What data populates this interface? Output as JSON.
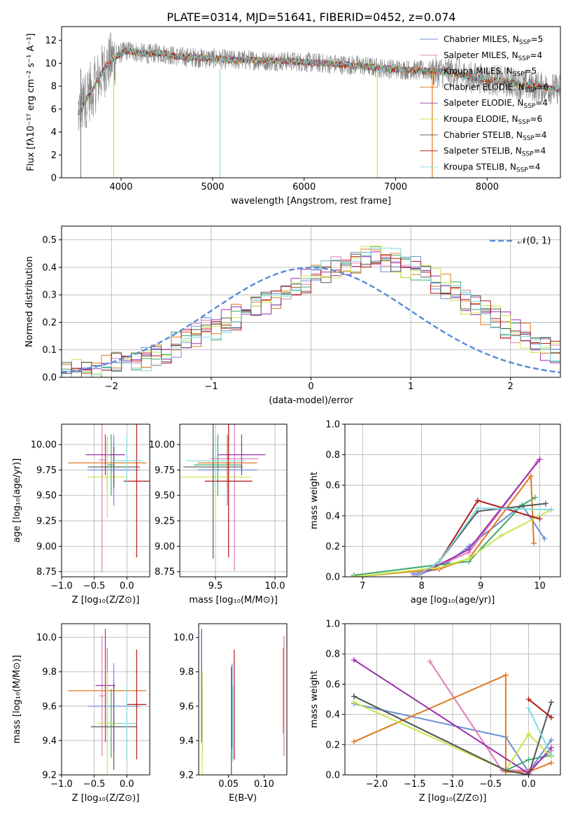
{
  "figure": {
    "title": "PLATE=0314, MJD=51641, FIBERID=0452, z=0.074"
  },
  "colors": {
    "Chabrier MILES": "#6b8fd6",
    "Salpeter MILES": "#e07cb4",
    "Kroupa MILES": "#3aa86b",
    "Chabrier ELODIE": "#e07a1f",
    "Salpeter ELODIE": "#9c2fae",
    "Kroupa ELODIE": "#c8e64a",
    "Chabrier STELIB": "#555555",
    "Salpeter STELIB": "#b01818",
    "Kroupa STELIB": "#7edce0"
  },
  "chart_data": [
    {
      "id": "spectrum",
      "type": "line",
      "xlabel": "wavelength [Angstrom, rest frame]",
      "ylabel": "Flux [fλ10⁻¹⁷ erg cm⁻² s⁻¹ A⁻¹]",
      "xlim": [
        3350,
        8800
      ],
      "ylim": [
        0,
        13.2
      ],
      "xticks": [
        4000,
        5000,
        6000,
        7000,
        8000
      ],
      "yticks": [
        0,
        2,
        4,
        6,
        8,
        10,
        12
      ],
      "grid": false,
      "legend": "top-right",
      "legend_entries": [
        {
          "model": "Chabrier MILES",
          "label": "Chabrier MILES, N",
          "sub": "SSP",
          "tail": "=5"
        },
        {
          "model": "Salpeter MILES",
          "label": "Salpeter MILES, N",
          "sub": "SSP",
          "tail": "=4"
        },
        {
          "model": "Kroupa MILES",
          "label": "Kroupa MILES, N",
          "sub": "SSP",
          "tail": "=5"
        },
        {
          "model": "Chabrier ELODIE",
          "label": "Chabrier ELODIE, N",
          "sub": "SSP",
          "tail": "=6"
        },
        {
          "model": "Salpeter ELODIE",
          "label": "Salpeter ELODIE, N",
          "sub": "SSP",
          "tail": "=4"
        },
        {
          "model": "Kroupa ELODIE",
          "label": "Kroupa ELODIE, N",
          "sub": "SSP",
          "tail": "=6"
        },
        {
          "model": "Chabrier STELIB",
          "label": "Chabrier STELIB, N",
          "sub": "SSP",
          "tail": "=4"
        },
        {
          "model": "Salpeter STELIB",
          "label": "Salpeter STELIB, N",
          "sub": "SSP",
          "tail": "=4"
        },
        {
          "model": "Kroupa STELIB",
          "label": "Kroupa STELIB, N",
          "sub": "SSP",
          "tail": "=4"
        }
      ],
      "observed_envelope": {
        "wavelength": [
          3550,
          3600,
          3650,
          3700,
          3750,
          3800,
          3850,
          3900,
          3950,
          4000,
          4050,
          4100,
          4200,
          4300,
          4400,
          4500,
          4600,
          4800,
          5000,
          5200,
          5400,
          5600,
          5800,
          6000,
          6200,
          6400,
          6600,
          6800,
          7000,
          7200,
          7400,
          7600,
          7800,
          8000,
          8200,
          8400,
          8600,
          8800
        ],
        "flux": [
          5.8,
          6.5,
          7.4,
          7.9,
          8.6,
          9.3,
          9.9,
          10.3,
          10.6,
          10.9,
          11.1,
          11.1,
          10.9,
          10.8,
          10.9,
          10.8,
          10.6,
          10.5,
          10.4,
          10.3,
          10.3,
          10.2,
          10.2,
          10.1,
          10.0,
          9.9,
          9.8,
          9.6,
          9.5,
          9.4,
          9.3,
          9.2,
          8.8,
          8.6,
          8.4,
          8.1,
          7.9,
          7.7
        ]
      }
    },
    {
      "id": "residuals",
      "type": "bar",
      "xlabel": "(data-model)/error",
      "ylabel": "Normed distribution",
      "xlim": [
        -2.5,
        2.5
      ],
      "ylim": [
        0,
        0.55
      ],
      "xticks": [
        -2,
        -1,
        0,
        1,
        2
      ],
      "yticks": [
        0.0,
        0.1,
        0.2,
        0.3,
        0.4,
        0.5
      ],
      "grid": true,
      "legend": "top-right",
      "legend_label": "𝒩(0, 1)",
      "bin_width": 0.1,
      "bin_start": -2.5,
      "histogram_values": [
        0.02,
        0.02,
        0.03,
        0.03,
        0.04,
        0.05,
        0.06,
        0.06,
        0.07,
        0.09,
        0.1,
        0.12,
        0.14,
        0.15,
        0.17,
        0.18,
        0.2,
        0.22,
        0.24,
        0.26,
        0.28,
        0.3,
        0.31,
        0.33,
        0.35,
        0.36,
        0.38,
        0.39,
        0.4,
        0.42,
        0.44,
        0.45,
        0.43,
        0.42,
        0.4,
        0.39,
        0.37,
        0.35,
        0.33,
        0.31,
        0.28,
        0.26,
        0.24,
        0.21,
        0.19,
        0.17,
        0.15,
        0.13,
        0.11,
        0.09,
        0.08,
        0.07,
        0.06,
        0.05,
        0.04,
        0.04,
        0.03,
        0.03,
        0.02,
        0.02
      ]
    },
    {
      "id": "age-vs-Z",
      "type": "scatter",
      "xlabel": "Z [log₁₀(Z/Z⊙)]",
      "ylabel": "age  [log₁₀(age/yr)]",
      "xlim": [
        -1.0,
        0.35
      ],
      "ylim": [
        8.7,
        10.2
      ],
      "xticks": [
        -1.0,
        -0.5,
        0.0
      ],
      "yticks": [
        8.75,
        9.0,
        9.25,
        9.5,
        9.75,
        10.0
      ],
      "grid": true,
      "points": [
        {
          "model": "Chabrier MILES",
          "x": -0.2,
          "y": 9.75,
          "xerr": 0.4,
          "yerr": 0.35
        },
        {
          "model": "Salpeter MILES",
          "x": -0.38,
          "y": 9.85,
          "xerr": 0.05,
          "yerr": 1.1
        },
        {
          "model": "Kroupa MILES",
          "x": -0.24,
          "y": 9.8,
          "xerr": 0.05,
          "yerr": 0.3
        },
        {
          "model": "Chabrier ELODIE",
          "x": -0.3,
          "y": 9.82,
          "xerr": 0.6,
          "yerr": 0.25
        },
        {
          "model": "Salpeter ELODIE",
          "x": -0.33,
          "y": 9.9,
          "xerr": 0.3,
          "yerr": 0.2
        },
        {
          "model": "Kroupa ELODIE",
          "x": -0.3,
          "y": 9.68,
          "xerr": 0.3,
          "yerr": 0.4
        },
        {
          "model": "Chabrier STELIB",
          "x": -0.2,
          "y": 9.78,
          "xerr": 0.4,
          "yerr": 0.2
        },
        {
          "model": "Salpeter STELIB",
          "x": 0.15,
          "y": 9.64,
          "xerr": 0.2,
          "yerr": 0.75
        },
        {
          "model": "Kroupa STELIB",
          "x": 0.0,
          "y": 9.84,
          "xerr": 0.25,
          "yerr": 0.25
        }
      ]
    },
    {
      "id": "age-vs-mass",
      "type": "scatter",
      "xlabel": "mass [log₁₀(M/M⊙)]",
      "ylabel": "",
      "xlim": [
        9.2,
        10.1
      ],
      "ylim": [
        8.7,
        10.2
      ],
      "xticks": [
        9.5,
        10.0
      ],
      "yticks": [
        8.75,
        9.0,
        9.25,
        9.5,
        9.75,
        10.0
      ],
      "grid": true,
      "points": [
        {
          "model": "Chabrier MILES",
          "x": 9.6,
          "y": 9.75,
          "xerr": 0.25,
          "yerr": 0.35
        },
        {
          "model": "Salpeter MILES",
          "x": 9.66,
          "y": 9.86,
          "xerr": 0.2,
          "yerr": 1.1
        },
        {
          "model": "Kroupa MILES",
          "x": 9.52,
          "y": 9.8,
          "xerr": 0.2,
          "yerr": 0.3
        },
        {
          "model": "Chabrier ELODIE",
          "x": 9.6,
          "y": 9.82,
          "xerr": 0.25,
          "yerr": 0.25
        },
        {
          "model": "Salpeter ELODIE",
          "x": 9.72,
          "y": 9.9,
          "xerr": 0.2,
          "yerr": 0.2
        },
        {
          "model": "Kroupa ELODIE",
          "x": 9.5,
          "y": 9.68,
          "xerr": 0.3,
          "yerr": 0.4
        },
        {
          "model": "Chabrier STELIB",
          "x": 9.48,
          "y": 9.78,
          "xerr": 0.25,
          "yerr": 0.9
        },
        {
          "model": "Salpeter STELIB",
          "x": 9.61,
          "y": 9.64,
          "xerr": 0.2,
          "yerr": 0.75
        },
        {
          "model": "Kroupa STELIB",
          "x": 9.5,
          "y": 9.84,
          "xerr": 0.25,
          "yerr": 0.25
        }
      ]
    },
    {
      "id": "weight-vs-age",
      "type": "line",
      "xlabel": "age  [log₁₀(age/yr)]",
      "ylabel": "mass weight",
      "xlim": [
        6.7,
        10.35
      ],
      "ylim": [
        0,
        1.0
      ],
      "xticks": [
        7,
        8,
        9,
        10
      ],
      "yticks": [
        0.0,
        0.2,
        0.4,
        0.6,
        0.8,
        1.0
      ],
      "grid": true,
      "series": [
        {
          "model": "Chabrier MILES",
          "x": [
            7.85,
            8.3,
            8.8,
            9.7,
            10.08
          ],
          "y": [
            0.02,
            0.05,
            0.2,
            0.47,
            0.25
          ]
        },
        {
          "model": "Salpeter MILES",
          "x": [
            7.9,
            8.8,
            9.95
          ],
          "y": [
            0.01,
            0.16,
            0.75
          ]
        },
        {
          "model": "Kroupa MILES",
          "x": [
            6.85,
            8.3,
            8.8,
            9.7,
            9.92
          ],
          "y": [
            0.01,
            0.08,
            0.1,
            0.47,
            0.52
          ]
        },
        {
          "model": "Chabrier ELODIE",
          "x": [
            6.85,
            8.3,
            8.8,
            9.85,
            9.9
          ],
          "y": [
            0.0,
            0.05,
            0.12,
            0.66,
            0.22
          ]
        },
        {
          "model": "Salpeter ELODIE",
          "x": [
            7.9,
            8.8,
            10.0
          ],
          "y": [
            0.0,
            0.18,
            0.77
          ]
        },
        {
          "model": "Kroupa ELODIE",
          "x": [
            6.85,
            8.3,
            8.8,
            9.35,
            10.2
          ],
          "y": [
            0.0,
            0.06,
            0.12,
            0.27,
            0.44
          ]
        },
        {
          "model": "Chabrier STELIB",
          "x": [
            7.9,
            8.3,
            8.95,
            10.1
          ],
          "y": [
            0.0,
            0.1,
            0.43,
            0.48
          ]
        },
        {
          "model": "Salpeter STELIB",
          "x": [
            7.9,
            8.3,
            8.95,
            10.0
          ],
          "y": [
            0.0,
            0.1,
            0.5,
            0.38
          ]
        },
        {
          "model": "Kroupa STELIB",
          "x": [
            7.9,
            8.3,
            8.95,
            10.2
          ],
          "y": [
            0.0,
            0.1,
            0.45,
            0.44
          ]
        }
      ]
    },
    {
      "id": "mass-vs-Z",
      "type": "scatter",
      "xlabel": "Z [log₁₀(Z/Z⊙)]",
      "ylabel": "mass [log₁₀(M/M⊙)]",
      "xlim": [
        -1.0,
        0.35
      ],
      "ylim": [
        9.2,
        10.08
      ],
      "xticks": [
        -1.0,
        -0.5,
        0.0
      ],
      "yticks": [
        9.2,
        9.4,
        9.6,
        9.8,
        10.0
      ],
      "grid": true,
      "points": [
        {
          "model": "Chabrier MILES",
          "x": -0.2,
          "y": 9.6,
          "xerr": 0.4,
          "yerr": 0.25
        },
        {
          "model": "Salpeter MILES",
          "x": -0.38,
          "y": 9.66,
          "xerr": 0.05,
          "yerr": 0.35
        },
        {
          "model": "Kroupa MILES",
          "x": -0.24,
          "y": 9.5,
          "xerr": 0.05,
          "yerr": 0.2
        },
        {
          "model": "Chabrier ELODIE",
          "x": -0.3,
          "y": 9.69,
          "xerr": 0.6,
          "yerr": 0.25
        },
        {
          "model": "Salpeter ELODIE",
          "x": -0.33,
          "y": 9.72,
          "xerr": 0.15,
          "yerr": 0.33
        },
        {
          "model": "Kroupa ELODIE",
          "x": -0.3,
          "y": 9.5,
          "xerr": 0.15,
          "yerr": 0.3
        },
        {
          "model": "Chabrier STELIB",
          "x": -0.2,
          "y": 9.48,
          "xerr": 0.35,
          "yerr": 0.25
        },
        {
          "model": "Salpeter STELIB",
          "x": 0.15,
          "y": 9.61,
          "xerr": 0.15,
          "yerr": 0.32
        },
        {
          "model": "Kroupa STELIB",
          "x": 0.0,
          "y": 9.5,
          "xerr": 0.15,
          "yerr": 0.22
        }
      ]
    },
    {
      "id": "mass-vs-EBV",
      "type": "scatter",
      "xlabel": "E(B-V)",
      "ylabel": "",
      "xlim": [
        0.008,
        0.132
      ],
      "ylim": [
        9.2,
        10.08
      ],
      "xticks": [
        0.05,
        0.1
      ],
      "yticks": [
        9.2,
        9.4,
        9.6,
        9.8,
        10.0
      ],
      "grid": false,
      "points": [
        {
          "model": "Chabrier MILES",
          "x": 0.055,
          "y": 9.6,
          "yerr": 0.25
        },
        {
          "model": "Salpeter MILES",
          "x": 0.128,
          "y": 9.66,
          "yerr": 0.35
        },
        {
          "model": "Kroupa MILES",
          "x": 0.013,
          "y": 9.52,
          "yerr": 0.2
        },
        {
          "model": "Chabrier ELODIE",
          "x": 0.127,
          "y": 9.69,
          "yerr": 0.25
        },
        {
          "model": "Salpeter ELODIE",
          "x": 0.012,
          "y": 9.72,
          "yerr": 0.33
        },
        {
          "model": "Kroupa ELODIE",
          "x": 0.013,
          "y": 9.5,
          "yerr": 0.3
        },
        {
          "model": "Chabrier STELIB",
          "x": 0.054,
          "y": 9.48,
          "yerr": 0.35
        },
        {
          "model": "Salpeter STELIB",
          "x": 0.058,
          "y": 9.61,
          "yerr": 0.32
        },
        {
          "model": "Kroupa STELIB",
          "x": 0.056,
          "y": 9.5,
          "yerr": 0.22
        }
      ]
    },
    {
      "id": "weight-vs-Z",
      "type": "line",
      "xlabel": "Z [log₁₀(Z/Z⊙)]",
      "ylabel": "mass weight",
      "xlim": [
        -2.42,
        0.42
      ],
      "ylim": [
        0,
        1.0
      ],
      "xticks": [
        -2.0,
        -1.5,
        -1.0,
        -0.5,
        0.0
      ],
      "yticks": [
        0.0,
        0.2,
        0.4,
        0.6,
        0.8,
        1.0
      ],
      "grid": true,
      "series": [
        {
          "model": "Chabrier MILES",
          "x": [
            -2.3,
            -0.3,
            0.0,
            0.3
          ],
          "y": [
            0.47,
            0.25,
            0.02,
            0.23
          ]
        },
        {
          "model": "Salpeter MILES",
          "x": [
            -1.3,
            -0.35,
            0.0,
            0.3
          ],
          "y": [
            0.75,
            0.03,
            0.03,
            0.16
          ]
        },
        {
          "model": "Kroupa MILES",
          "x": [
            -2.3,
            -0.3,
            0.0,
            0.3
          ],
          "y": [
            0.52,
            0.03,
            0.1,
            0.13
          ]
        },
        {
          "model": "Chabrier ELODIE",
          "x": [
            -2.3,
            -0.3,
            -0.3,
            0.0,
            0.3
          ],
          "y": [
            0.22,
            0.66,
            0.02,
            0.02,
            0.08
          ]
        },
        {
          "model": "Salpeter ELODIE",
          "x": [
            -2.3,
            0.0,
            0.3
          ],
          "y": [
            0.76,
            0.01,
            0.18
          ]
        },
        {
          "model": "Kroupa ELODIE",
          "x": [
            -2.3,
            -0.3,
            0.0,
            0.3
          ],
          "y": [
            0.48,
            0.03,
            0.27,
            0.12
          ]
        },
        {
          "model": "Chabrier STELIB",
          "x": [
            -2.3,
            -0.3,
            0.0,
            0.3
          ],
          "y": [
            0.52,
            0.03,
            0.0,
            0.48
          ]
        },
        {
          "model": "Salpeter STELIB",
          "x": [
            0.0,
            0.3
          ],
          "y": [
            0.5,
            0.38
          ]
        },
        {
          "model": "Kroupa STELIB",
          "x": [
            0.0,
            0.3
          ],
          "y": [
            0.44,
            0.13
          ]
        }
      ]
    }
  ]
}
